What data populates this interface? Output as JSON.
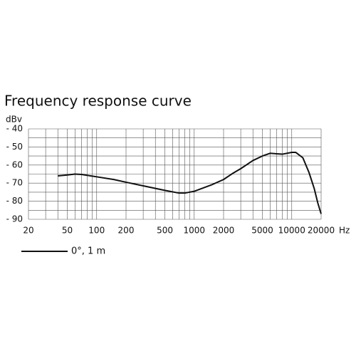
{
  "chart_data": {
    "type": "line",
    "title": "Frequency response curve",
    "y_unit": "dBv",
    "x_unit": "Hz",
    "xscale": "log",
    "xlim": [
      20,
      20000
    ],
    "ylim": [
      -90,
      -40
    ],
    "xticks": [
      20,
      50,
      100,
      200,
      500,
      1000,
      2000,
      5000,
      10000,
      20000
    ],
    "yticks": [
      {
        "value": -40,
        "label": "- 40"
      },
      {
        "value": -50,
        "label": "- 50"
      },
      {
        "value": -60,
        "label": "- 60"
      },
      {
        "value": -70,
        "label": "- 70"
      },
      {
        "value": -80,
        "label": "- 80"
      },
      {
        "value": -90,
        "label": "- 90"
      }
    ],
    "x_grid_lines": [
      20,
      30,
      40,
      50,
      60,
      70,
      80,
      90,
      100,
      200,
      300,
      400,
      500,
      600,
      700,
      800,
      900,
      1000,
      2000,
      3000,
      4000,
      5000,
      6000,
      7000,
      8000,
      9000,
      10000,
      20000
    ],
    "y_grid_lines": [
      -40,
      -45,
      -50,
      -55,
      -60,
      -65,
      -70,
      -75,
      -80,
      -85,
      -90
    ],
    "x": [
      40,
      50,
      60,
      70,
      100,
      150,
      200,
      300,
      500,
      700,
      800,
      1000,
      1500,
      2000,
      2500,
      3000,
      4000,
      5000,
      6000,
      7000,
      8000,
      10000,
      11000,
      13000,
      15000,
      17000,
      18500,
      20000
    ],
    "series": [
      {
        "name": "0°, 1 m",
        "color": "#111111",
        "values": [
          -66,
          -65.5,
          -65,
          -65.2,
          -66.5,
          -68,
          -69.5,
          -71.5,
          -74,
          -75.5,
          -75.5,
          -74.5,
          -71,
          -68,
          -64.5,
          -62,
          -57.5,
          -55,
          -53.5,
          -53.8,
          -54,
          -53,
          -53,
          -56,
          -64,
          -73,
          -81,
          -87
        ]
      }
    ]
  }
}
